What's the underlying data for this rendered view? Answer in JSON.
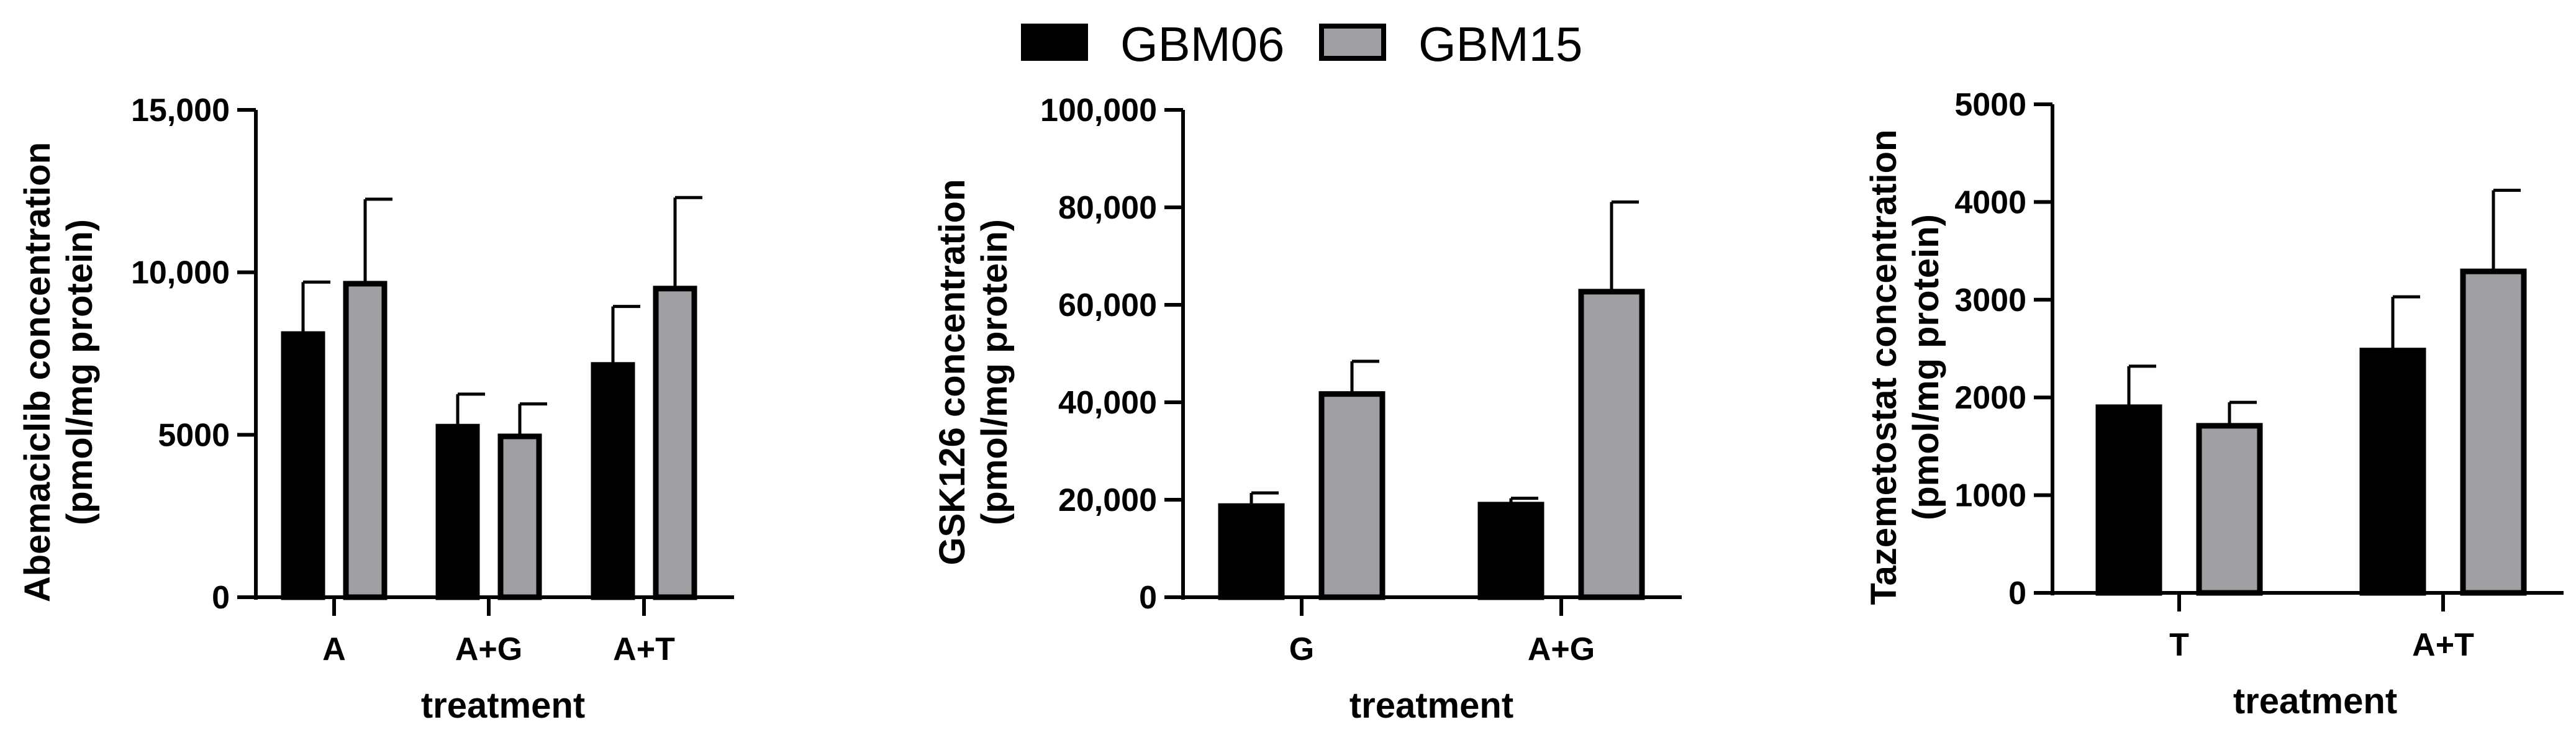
{
  "legend": {
    "position": "top-center",
    "items": [
      {
        "name": "GBM06",
        "color": "#000000"
      },
      {
        "name": "GBM15",
        "color": "#a0a0a4"
      }
    ]
  },
  "chart_data": [
    {
      "type": "bar",
      "categories": [
        "A",
        "A+G",
        "A+T"
      ],
      "series": [
        {
          "name": "GBM06",
          "color": "#000000",
          "values": [
            8100,
            5250,
            7150
          ],
          "errors": [
            1600,
            1000,
            1800
          ]
        },
        {
          "name": "GBM15",
          "color": "#a0a0a4",
          "values": [
            9650,
            4950,
            9500
          ],
          "errors": [
            2600,
            1000,
            2800
          ]
        }
      ],
      "xlabel": "treatment",
      "ylabel_lines": [
        "Abemaciclib concentration",
        "(pmol/mg protein)"
      ],
      "ylim": [
        0,
        15000
      ],
      "yticks": [
        0,
        5000,
        10000,
        15000
      ],
      "ytick_labels": [
        "0",
        "5000",
        "10,000",
        "15,000"
      ],
      "grid": false
    },
    {
      "type": "bar",
      "categories": [
        "G",
        "A+G"
      ],
      "series": [
        {
          "name": "GBM06",
          "color": "#000000",
          "values": [
            18700,
            19000
          ],
          "errors": [
            2700,
            1300
          ]
        },
        {
          "name": "GBM15",
          "color": "#a0a0a4",
          "values": [
            41700,
            62700
          ],
          "errors": [
            6700,
            18400
          ]
        }
      ],
      "xlabel": "treatment",
      "ylabel_lines": [
        "GSK126 concentration",
        "(pmol/mg protein)"
      ],
      "ylim": [
        0,
        100000
      ],
      "yticks": [
        0,
        20000,
        40000,
        60000,
        80000,
        100000
      ],
      "ytick_labels": [
        "0",
        "20,000",
        "40,000",
        "60,000",
        "80,000",
        "100,000"
      ],
      "grid": false
    },
    {
      "type": "bar",
      "categories": [
        "T",
        "A+T"
      ],
      "series": [
        {
          "name": "GBM06",
          "color": "#000000",
          "values": [
            1900,
            2480
          ],
          "errors": [
            420,
            550
          ]
        },
        {
          "name": "GBM15",
          "color": "#a0a0a4",
          "values": [
            1710,
            3290
          ],
          "errors": [
            240,
            830
          ]
        }
      ],
      "xlabel": "treatment",
      "ylabel_lines": [
        "Tazemetostat concentration",
        "(pmol/mg protein)"
      ],
      "ylim": [
        0,
        5000
      ],
      "yticks": [
        0,
        1000,
        2000,
        3000,
        4000,
        5000
      ],
      "ytick_labels": [
        "0",
        "1000",
        "2000",
        "3000",
        "4000",
        "5000"
      ],
      "grid": false
    }
  ]
}
